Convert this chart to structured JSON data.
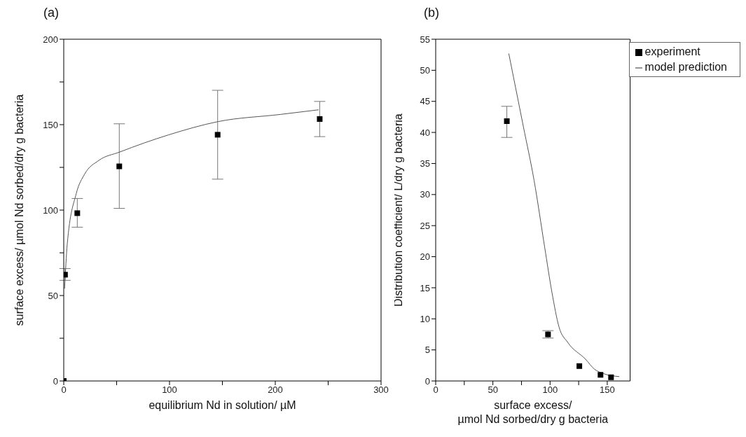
{
  "chart_data": [
    {
      "type": "scatter",
      "title": "(a)",
      "xlabel": "equilibrium Nd in solution/ µM",
      "ylabel": "surface excess/ µmol Nd sorbed/dry g bacteria",
      "xlim": [
        0,
        300
      ],
      "xticks": [
        0,
        {
          "value": 50,
          "label": null
        },
        100,
        {
          "value": 150,
          "label": null
        },
        200,
        {
          "value": 250,
          "label": null
        },
        300
      ],
      "ylim": [
        0,
        200
      ],
      "yticks": [
        0,
        {
          "value": 25,
          "label": null
        },
        50,
        {
          "value": 75,
          "label": null
        },
        100,
        {
          "value": 125,
          "label": null
        },
        150,
        {
          "value": 175,
          "label": null
        },
        200
      ],
      "grid": false,
      "legend": false,
      "series": [
        {
          "color": "#000000",
          "marker": "square",
          "x": [
            0,
            1.2,
            12.8,
            52.5,
            145.5,
            242
          ],
          "values": [
            0,
            62.2,
            98.2,
            125.6,
            144.1,
            153.3
          ],
          "errors": [
            null,
            [
              58.9,
              65.8
            ],
            [
              90,
              106.8
            ],
            [
              101,
              150.5
            ],
            [
              118.1,
              170.1
            ],
            [
              143,
              163.6
            ]
          ]
        },
        {
          "type": "line",
          "color": "#555555",
          "marker": "none",
          "line_style": "solid",
          "x": [
            0.8,
            3.3,
            11.8,
            19.7,
            33,
            53,
            99,
            146,
            205,
            241
          ],
          "values": [
            54,
            80,
            109.6,
            121,
            129,
            134,
            144,
            151.8,
            156,
            158.7
          ]
        }
      ]
    },
    {
      "type": "scatter",
      "title": "(b)",
      "xlabel": "surface excess/\nµmol Nd sorbed/dry g bacteria",
      "ylabel": "Distribution coefficient/ L/dry g bacteria",
      "xlim": [
        0,
        170
      ],
      "xticks": [
        0,
        {
          "value": 25,
          "label": null
        },
        50,
        {
          "value": 75,
          "label": null
        },
        100,
        {
          "value": 125,
          "label": null
        },
        150
      ],
      "ylim": [
        0,
        55
      ],
      "yticks": [
        0,
        5,
        10,
        15,
        20,
        25,
        30,
        35,
        40,
        45,
        50,
        55
      ],
      "grid": false,
      "legend": "top right",
      "series": [
        {
          "name": "experiment",
          "color": "#000000",
          "marker": "square",
          "x": [
            62.2,
            98.2,
            125.6,
            144.1,
            153.3
          ],
          "values": [
            41.8,
            7.5,
            2.4,
            1.0,
            0.6
          ],
          "errors": [
            [
              39.2,
              44.2
            ],
            0.6,
            null,
            null,
            null
          ]
        },
        {
          "type": "line",
          "name": "model prediction",
          "color": "#555555",
          "marker": "none",
          "line_style": "solid",
          "x": [
            63.9,
            76.7,
            86,
            95.3,
            101.6,
            107.8,
            115.5,
            131,
            138.8,
            146.5,
            160.5
          ],
          "values": [
            52.7,
            40.9,
            32.3,
            21.5,
            14.3,
            8.7,
            6.2,
            3.5,
            1.9,
            1.2,
            0.7
          ]
        }
      ]
    }
  ]
}
